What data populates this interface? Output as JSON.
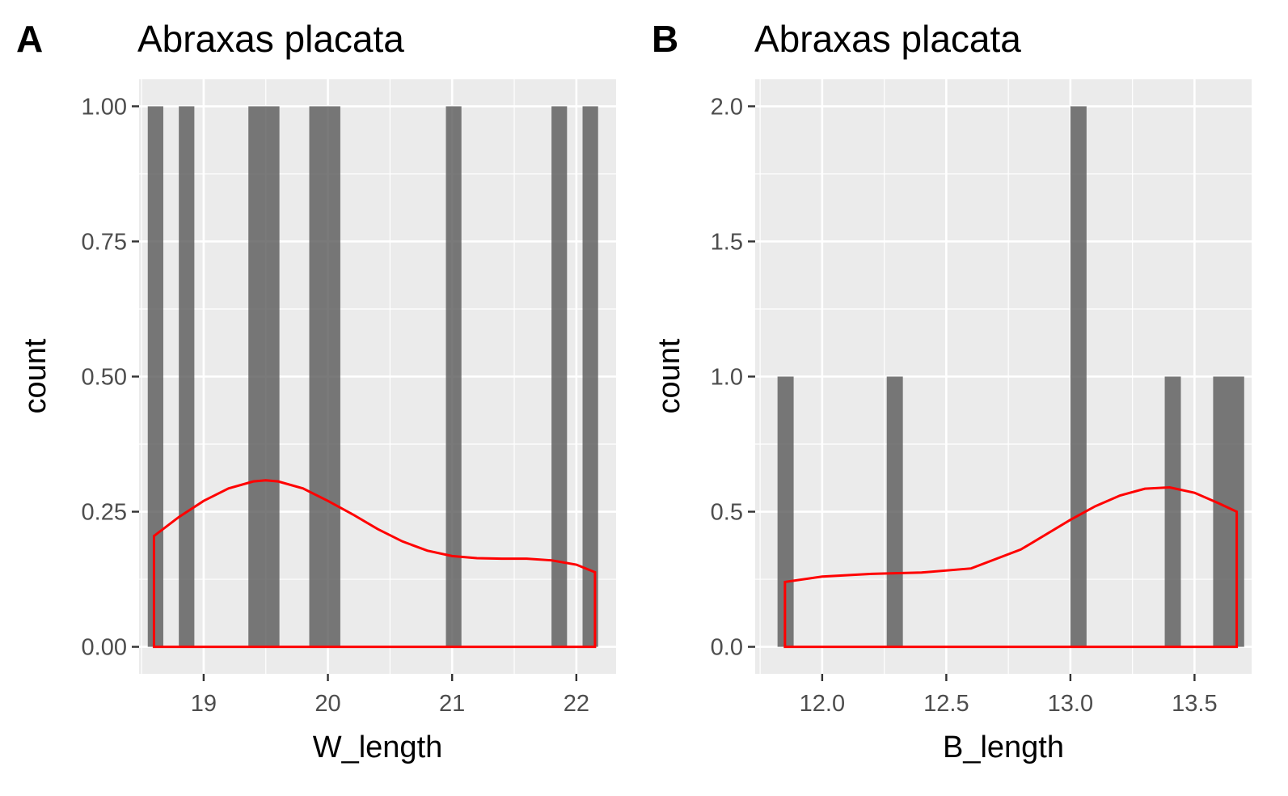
{
  "chart_data": [
    {
      "type": "bar",
      "panel_label": "A",
      "title": "Abraxas placata",
      "xlabel": "W_length",
      "ylabel": "count",
      "xlim": [
        18.48,
        22.32
      ],
      "ylim": [
        -0.05,
        1.05
      ],
      "xticks": [
        19,
        20,
        21,
        22
      ],
      "xtick_labels": [
        "19",
        "20",
        "21",
        "22"
      ],
      "yticks": [
        0,
        0.25,
        0.5,
        0.75,
        1.0
      ],
      "ytick_labels": [
        "0.00",
        "0.25",
        "0.50",
        "0.75",
        "1.00"
      ],
      "bars": [
        {
          "x0": 18.55,
          "x1": 18.675,
          "count": 1
        },
        {
          "x0": 18.8,
          "x1": 18.925,
          "count": 1
        },
        {
          "x0": 19.36,
          "x1": 19.61,
          "count": 1
        },
        {
          "x0": 19.85,
          "x1": 20.1,
          "count": 1
        },
        {
          "x0": 20.95,
          "x1": 21.075,
          "count": 1
        },
        {
          "x0": 21.8,
          "x1": 21.925,
          "count": 1
        },
        {
          "x0": 22.05,
          "x1": 22.175,
          "count": 1
        }
      ],
      "density_curve": {
        "color": "#ff0000",
        "x": [
          18.6,
          18.8,
          19.0,
          19.2,
          19.4,
          19.5,
          19.6,
          19.8,
          20.0,
          20.2,
          20.4,
          20.6,
          20.8,
          21.0,
          21.2,
          21.4,
          21.6,
          21.8,
          22.0,
          22.15
        ],
        "y": [
          0.205,
          0.24,
          0.27,
          0.293,
          0.306,
          0.308,
          0.306,
          0.293,
          0.27,
          0.245,
          0.218,
          0.195,
          0.178,
          0.168,
          0.164,
          0.163,
          0.163,
          0.16,
          0.152,
          0.138
        ]
      },
      "grid": true
    },
    {
      "type": "bar",
      "panel_label": "B",
      "title": "Abraxas placata",
      "xlabel": "B_length",
      "ylabel": "count",
      "xlim": [
        11.73,
        13.73
      ],
      "ylim": [
        -0.1,
        2.1
      ],
      "xticks": [
        12.0,
        12.5,
        13.0,
        13.5
      ],
      "xtick_labels": [
        "12.0",
        "12.5",
        "13.0",
        "13.5"
      ],
      "yticks": [
        0,
        0.5,
        1.0,
        1.5,
        2.0
      ],
      "ytick_labels": [
        "0.0",
        "0.5",
        "1.0",
        "1.5",
        "2.0"
      ],
      "bars": [
        {
          "x0": 11.82,
          "x1": 11.885,
          "count": 1
        },
        {
          "x0": 12.26,
          "x1": 12.325,
          "count": 1
        },
        {
          "x0": 13.0,
          "x1": 13.065,
          "count": 2
        },
        {
          "x0": 13.38,
          "x1": 13.445,
          "count": 1
        },
        {
          "x0": 13.575,
          "x1": 13.7,
          "count": 1
        }
      ],
      "density_curve": {
        "color": "#ff0000",
        "x": [
          11.85,
          12.0,
          12.2,
          12.4,
          12.6,
          12.8,
          13.0,
          13.1,
          13.2,
          13.3,
          13.4,
          13.5,
          13.6,
          13.67
        ],
        "y": [
          0.24,
          0.26,
          0.27,
          0.275,
          0.29,
          0.36,
          0.47,
          0.52,
          0.56,
          0.585,
          0.59,
          0.57,
          0.53,
          0.5
        ]
      },
      "grid": true
    }
  ]
}
